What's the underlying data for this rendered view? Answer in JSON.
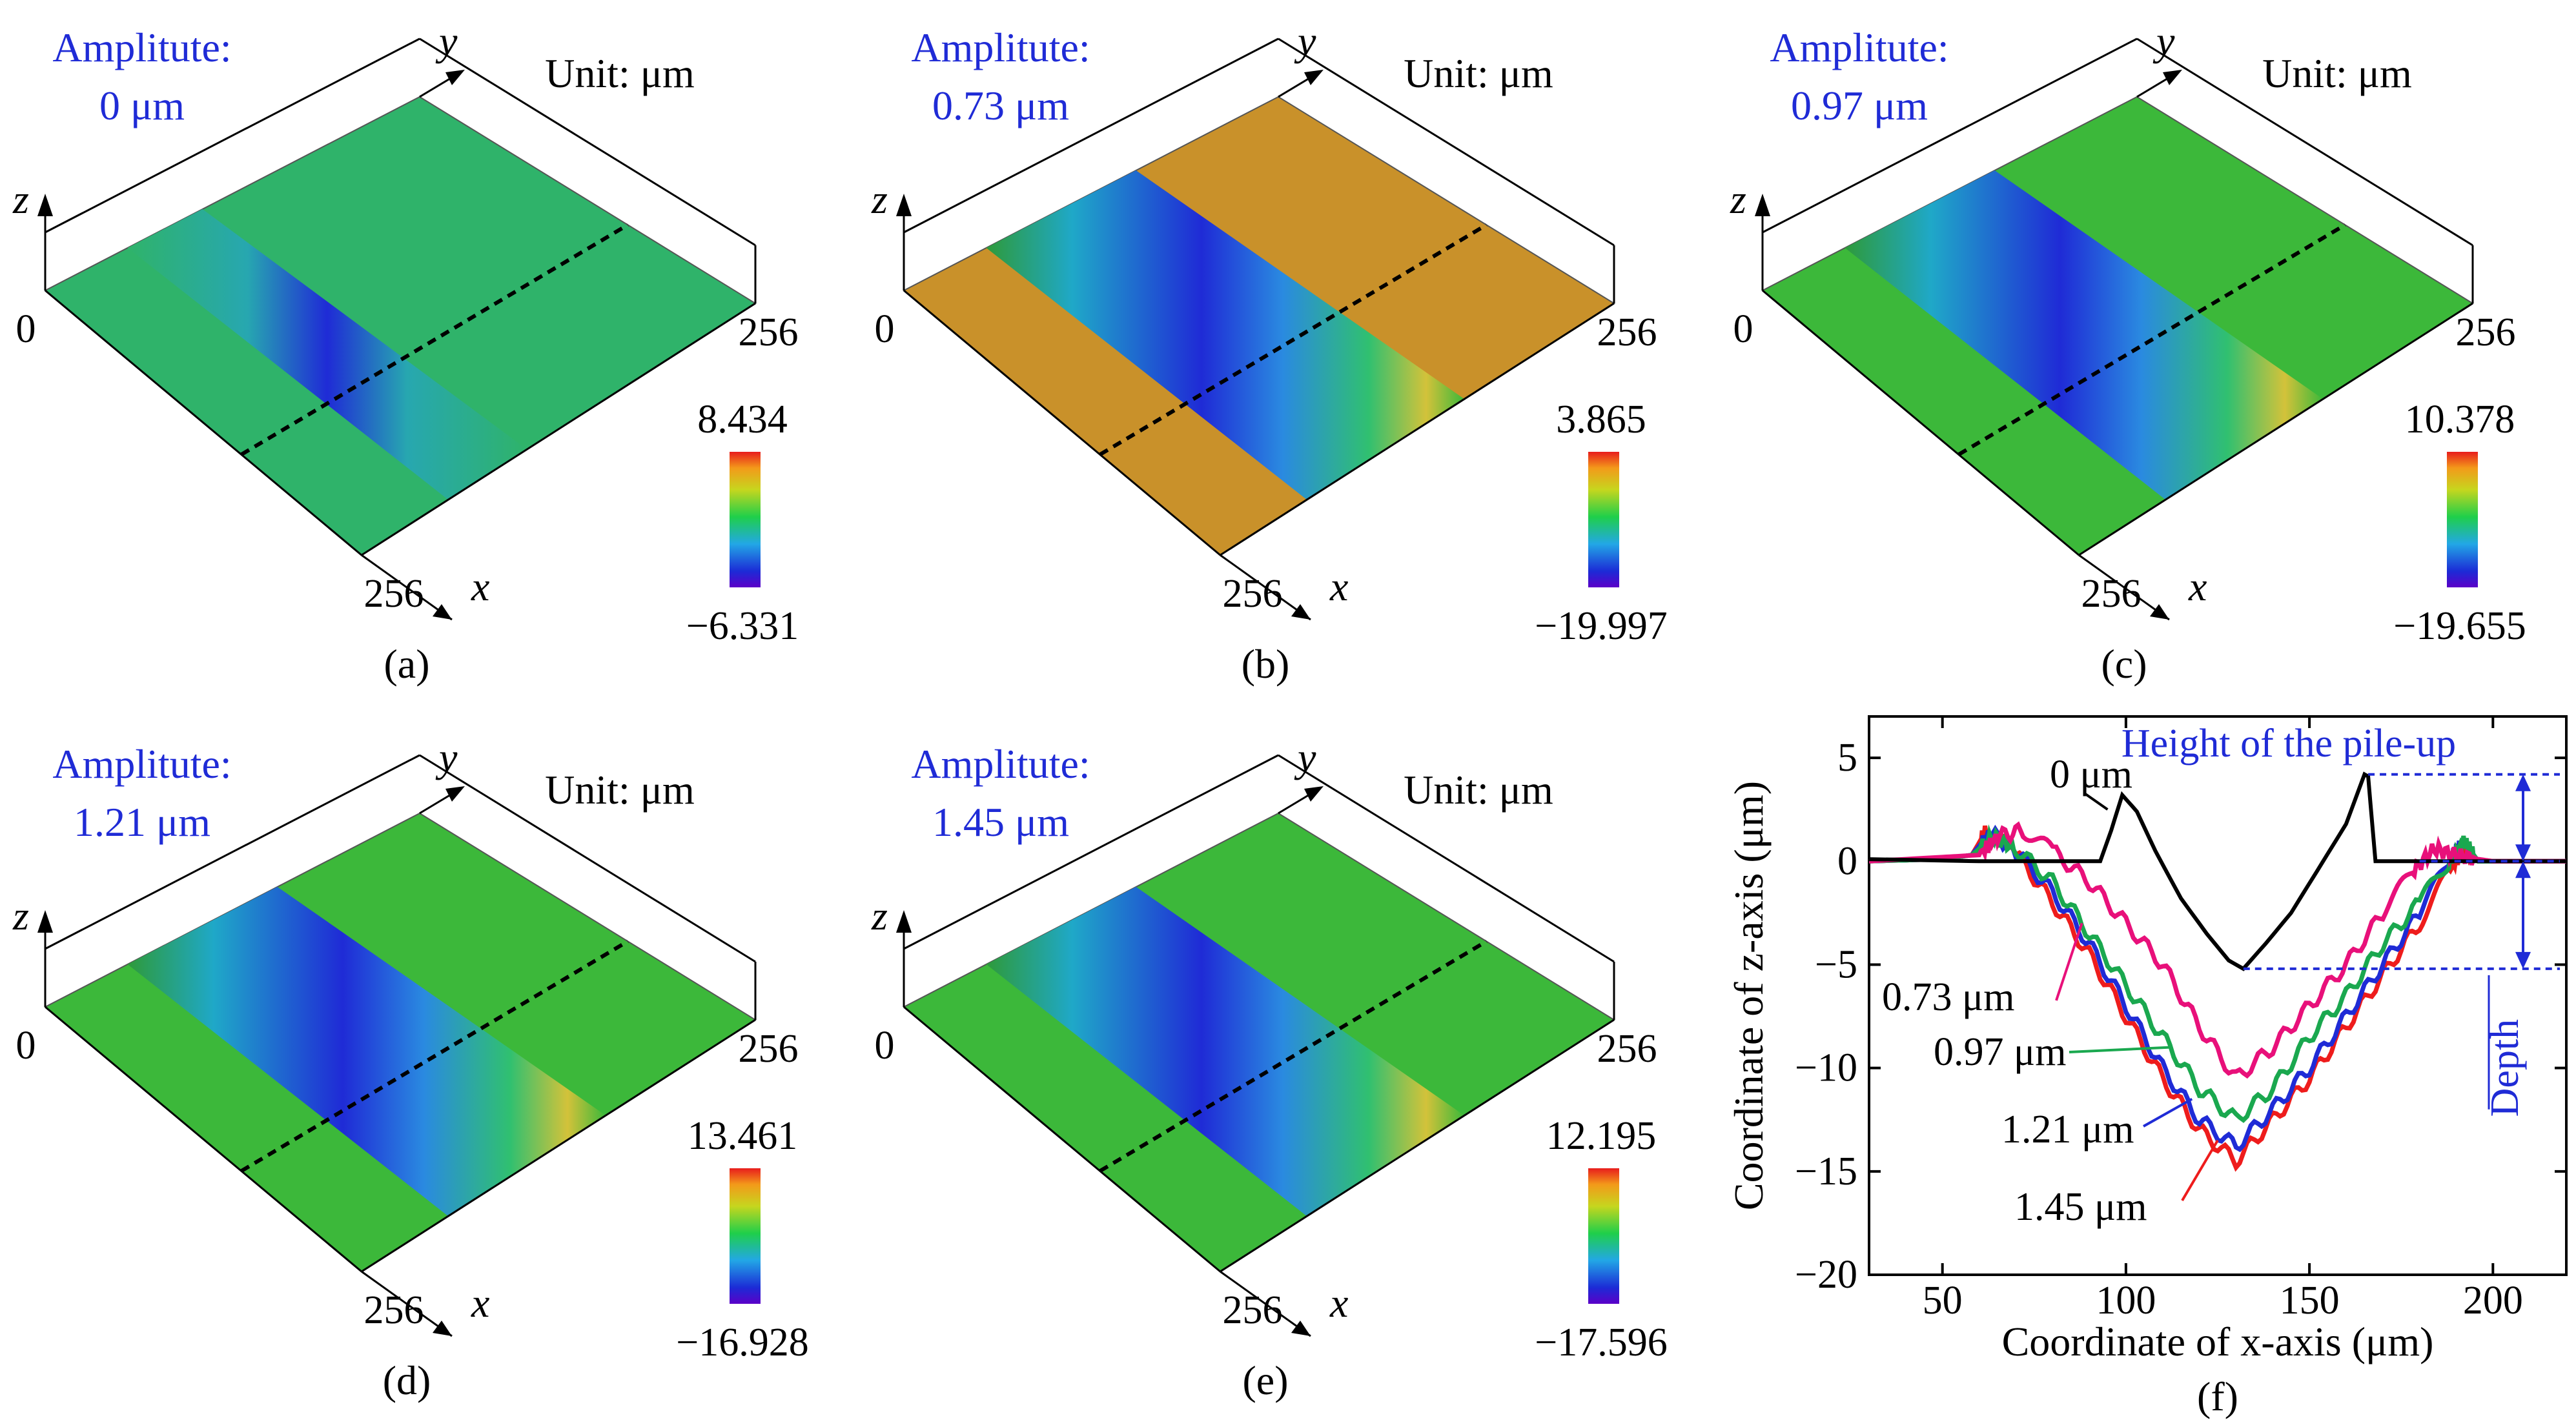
{
  "figure": {
    "panels": [
      {
        "id": "a",
        "caption": "(a)",
        "amp_label": "Amplitute:",
        "amp_value": "0 μm",
        "unit": "Unit: μm",
        "cb_max": "8.434",
        "cb_min": "−6.331",
        "ax_y": "y",
        "ax_x": "x",
        "ax_z": "z",
        "origin": "0",
        "x_end": "256",
        "y_end": "256",
        "base_color": "#2fb36a",
        "groove": "sharp"
      },
      {
        "id": "b",
        "caption": "(b)",
        "amp_label": "Amplitute:",
        "amp_value": "0.73 μm",
        "unit": "Unit: μm",
        "cb_max": "3.865",
        "cb_min": "−19.997",
        "ax_y": "y",
        "ax_x": "x",
        "ax_z": "z",
        "origin": "0",
        "x_end": "256",
        "y_end": "256",
        "base_color": "#c9912a",
        "groove": "wide"
      },
      {
        "id": "c",
        "caption": "(c)",
        "amp_label": "Amplitute:",
        "amp_value": "0.97 μm",
        "unit": "Unit: μm",
        "cb_max": "10.378",
        "cb_min": "−19.655",
        "ax_y": "y",
        "ax_x": "x",
        "ax_z": "z",
        "origin": "0",
        "x_end": "256",
        "y_end": "256",
        "base_color": "#3cb83a",
        "groove": "wide"
      },
      {
        "id": "d",
        "caption": "(d)",
        "amp_label": "Amplitute:",
        "amp_value": "1.21 μm",
        "unit": "Unit: μm",
        "cb_max": "13.461",
        "cb_min": "−16.928",
        "ax_y": "y",
        "ax_x": "x",
        "ax_z": "z",
        "origin": "0",
        "x_end": "256",
        "y_end": "256",
        "base_color": "#3cb83a",
        "groove": "wide"
      },
      {
        "id": "e",
        "caption": "(e)",
        "amp_label": "Amplitute:",
        "amp_value": "1.45 μm",
        "unit": "Unit: μm",
        "cb_max": "12.195",
        "cb_min": "−17.596",
        "ax_y": "y",
        "ax_x": "x",
        "ax_z": "z",
        "origin": "0",
        "x_end": "256",
        "y_end": "256",
        "base_color": "#3cb83a",
        "groove": "wide"
      }
    ],
    "colors": {
      "amp_text": "#1f2bd6",
      "axes": "#000000",
      "pileup_blue": "#1f2bd6"
    }
  },
  "chart_data": {
    "type": "line",
    "caption": "(f)",
    "xlabel": "Coordinate of x-axis (μm)",
    "ylabel": "Coordinate of z-axis (μm)",
    "xlim": [
      30,
      220
    ],
    "ylim": [
      -20,
      7
    ],
    "xticks": [
      50,
      100,
      150,
      200
    ],
    "yticks": [
      5,
      0,
      -5,
      -10,
      -15,
      -20
    ],
    "annotations": {
      "pileup": "Height of the pile-up",
      "depth": "Depth"
    },
    "series": [
      {
        "name": "0 μm",
        "color": "#000000",
        "label": "0 μm",
        "x": [
          30,
          60,
          93,
          96,
          99,
          103,
          108,
          115,
          122,
          128,
          132,
          138,
          145,
          152,
          160,
          165,
          166,
          168,
          172,
          200,
          220
        ],
        "y": [
          0.1,
          0,
          0,
          1.5,
          3.2,
          2.4,
          0.5,
          -1.8,
          -3.5,
          -4.8,
          -5.2,
          -4,
          -2.5,
          -0.5,
          1.8,
          4.2,
          4.1,
          0,
          0,
          0,
          0
        ]
      },
      {
        "name": "0.73 μm",
        "color": "#e8107a",
        "label": "0.73 μm",
        "x": [
          30,
          50,
          60,
          65,
          72,
          80,
          90,
          100,
          110,
          120,
          130,
          140,
          150,
          160,
          170,
          178,
          184,
          190,
          196,
          200,
          220
        ],
        "y": [
          0,
          0.2,
          0.3,
          1.2,
          1.5,
          0.5,
          -1,
          -3,
          -5,
          -8,
          -10.5,
          -9,
          -7,
          -5,
          -2.5,
          -0.5,
          0.6,
          0.3,
          0.1,
          0,
          0
        ]
      },
      {
        "name": "0.97 μm",
        "color": "#1aa84f",
        "label": "0.97 μm",
        "x": [
          30,
          50,
          58,
          64,
          70,
          80,
          90,
          100,
          110,
          120,
          130,
          140,
          150,
          160,
          170,
          180,
          188,
          192,
          196,
          200,
          220
        ],
        "y": [
          0,
          0.1,
          0.3,
          1.2,
          0.6,
          -1,
          -3.5,
          -6,
          -8.5,
          -11,
          -12.5,
          -11,
          -8.5,
          -6.5,
          -4,
          -2,
          0,
          1,
          0,
          0,
          0
        ]
      },
      {
        "name": "1.21 μm",
        "color": "#1f2bd6",
        "label": "1.21 μm",
        "x": [
          30,
          50,
          58,
          63,
          70,
          80,
          90,
          100,
          110,
          120,
          130,
          140,
          150,
          160,
          170,
          180,
          188,
          192,
          196,
          200,
          220
        ],
        "y": [
          0,
          0.1,
          0.3,
          1.4,
          0.5,
          -1.5,
          -4,
          -7,
          -10,
          -12.5,
          -13.8,
          -12,
          -10,
          -7.5,
          -5,
          -2.5,
          0,
          1,
          0,
          0,
          0
        ]
      },
      {
        "name": "1.45 μm",
        "color": "#ee1c1c",
        "label": "1.45 μm",
        "x": [
          30,
          50,
          58,
          62,
          70,
          80,
          90,
          100,
          110,
          120,
          130,
          140,
          150,
          160,
          170,
          180,
          188,
          192,
          196,
          200,
          220
        ],
        "y": [
          0,
          0.1,
          0.3,
          1.5,
          0.4,
          -2,
          -4.5,
          -7.5,
          -10.5,
          -13,
          -14.5,
          -12.5,
          -10.5,
          -8,
          -5.5,
          -3,
          -0.5,
          0.5,
          0,
          0,
          0
        ]
      }
    ]
  }
}
